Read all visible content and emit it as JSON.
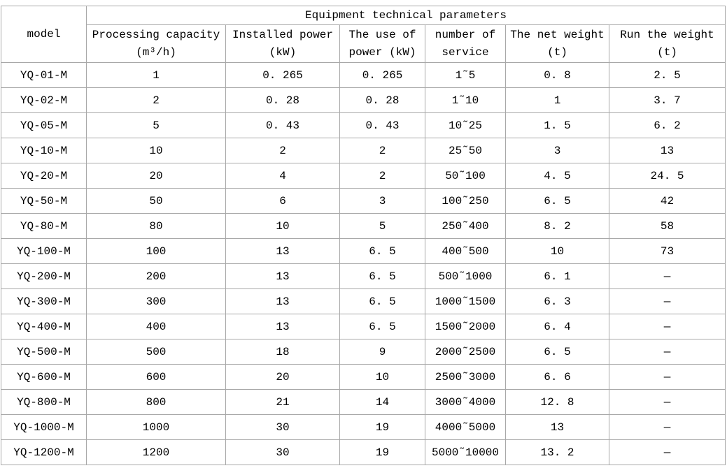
{
  "chart_data": {
    "type": "table",
    "title": "Equipment technical parameters",
    "model_header": "model",
    "column_keys": [
      "model",
      "processing_capacity",
      "installed_power",
      "use_of_power",
      "number_of_service",
      "net_weight",
      "run_weight"
    ],
    "columns": [
      {
        "line1": "Processing capacity",
        "line2": "(m³/h)"
      },
      {
        "line1": "Installed power",
        "line2": "(kW)"
      },
      {
        "line1": "The use of",
        "line2": "power (kW)"
      },
      {
        "line1": "number of",
        "line2": "service"
      },
      {
        "line1": "The net weight",
        "line2": "(t)"
      },
      {
        "line1": "Run the weight",
        "line2": "(t)"
      }
    ],
    "rows": [
      [
        "YQ-01-M",
        "1",
        "0. 265",
        "0. 265",
        "1˜5",
        "0. 8",
        "2. 5"
      ],
      [
        "YQ-02-M",
        "2",
        "0. 28",
        "0. 28",
        "1˜10",
        "1",
        "3. 7"
      ],
      [
        "YQ-05-M",
        "5",
        "0. 43",
        "0. 43",
        "10˜25",
        "1. 5",
        "6. 2"
      ],
      [
        "YQ-10-M",
        "10",
        "2",
        "2",
        "25˜50",
        "3",
        "13"
      ],
      [
        "YQ-20-M",
        "20",
        "4",
        "2",
        "50˜100",
        "4. 5",
        "24. 5"
      ],
      [
        "YQ-50-M",
        "50",
        "6",
        "3",
        "100˜250",
        "6. 5",
        "42"
      ],
      [
        "YQ-80-M",
        "80",
        "10",
        "5",
        "250˜400",
        "8. 2",
        "58"
      ],
      [
        "YQ-100-M",
        "100",
        "13",
        "6. 5",
        "400˜500",
        "10",
        "73"
      ],
      [
        "YQ-200-M",
        "200",
        "13",
        "6. 5",
        "500˜1000",
        "6. 1",
        "—"
      ],
      [
        "YQ-300-M",
        "300",
        "13",
        "6. 5",
        "1000˜1500",
        "6. 3",
        "—"
      ],
      [
        "YQ-400-M",
        "400",
        "13",
        "6. 5",
        "1500˜2000",
        "6. 4",
        "—"
      ],
      [
        "YQ-500-M",
        "500",
        "18",
        "9",
        "2000˜2500",
        "6. 5",
        "—"
      ],
      [
        "YQ-600-M",
        "600",
        "20",
        "10",
        "2500˜3000",
        "6. 6",
        "—"
      ],
      [
        "YQ-800-M",
        "800",
        "21",
        "14",
        "3000˜4000",
        "12. 8",
        "—"
      ],
      [
        "YQ-1000-M",
        "1000",
        "30",
        "19",
        "4000˜5000",
        "13",
        "—"
      ],
      [
        "YQ-1200-M",
        "1200",
        "30",
        "19",
        "5000˜10000",
        "13. 2",
        "—"
      ]
    ],
    "colors": {
      "border": "#a8a8a8",
      "text": "#000000",
      "background": "#ffffff"
    }
  }
}
